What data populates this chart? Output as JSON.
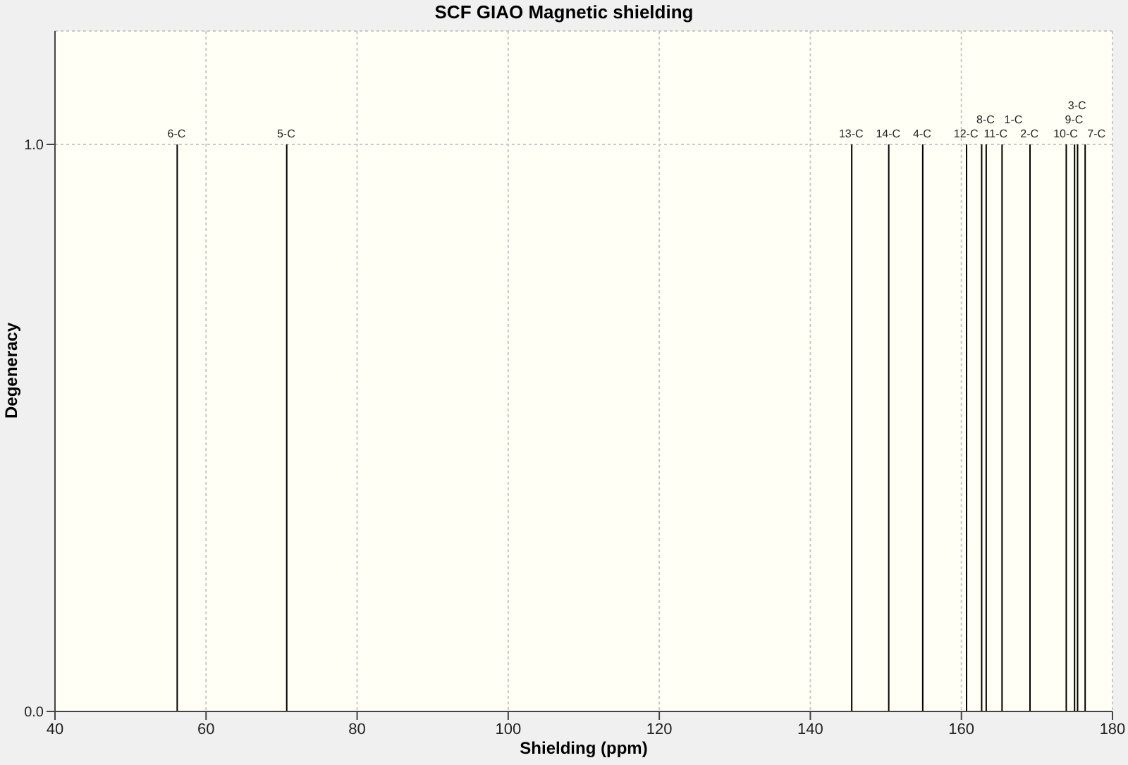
{
  "chart_data": {
    "type": "bar",
    "title": "SCF GIAO Magnetic shielding",
    "xlabel": "Shielding (ppm)",
    "ylabel": "Degeneracy",
    "x": [
      56.1,
      70.6,
      145.4,
      150.3,
      154.8,
      160.6,
      162.6,
      163.2,
      165.3,
      169.0,
      173.8,
      174.9,
      175.3,
      176.3
    ],
    "values": [
      1,
      1,
      1,
      1,
      1,
      1,
      1,
      1,
      1,
      1,
      1,
      1,
      1,
      1
    ],
    "color": "#000000",
    "annotations": [
      {
        "text": "6-C",
        "x": 56.1,
        "y": 1
      },
      {
        "text": "5-C",
        "x": 70.6,
        "y": 1
      },
      {
        "text": "13-C",
        "x": 145.4,
        "y": 1
      },
      {
        "text": "14-C",
        "x": 150.3,
        "y": 1
      },
      {
        "text": "4-C",
        "x": 154.8,
        "y": 1
      },
      {
        "text": "12-C",
        "x": 160.6,
        "y": 1
      },
      {
        "text": "11-C",
        "x": 162.6,
        "y": 1
      },
      {
        "text": "8-C",
        "x": 163.2,
        "y": 1
      },
      {
        "text": "1-C",
        "x": 165.3,
        "y": 1
      },
      {
        "text": "2-C",
        "x": 169.0,
        "y": 1
      },
      {
        "text": "10-C",
        "x": 173.8,
        "y": 1
      },
      {
        "text": "9-C",
        "x": 174.9,
        "y": 1
      },
      {
        "text": "3-C",
        "x": 175.3,
        "y": 1
      },
      {
        "text": "7-C",
        "x": 176.3,
        "y": 1
      }
    ],
    "xlim": [
      40,
      180
    ],
    "xticks": [
      40,
      60,
      80,
      100,
      120,
      140,
      160,
      180
    ],
    "ylim": [
      0,
      1.2
    ],
    "yticks": [
      {
        "value": 0,
        "label": "0.0"
      },
      {
        "value": 1,
        "label": "1.0"
      }
    ],
    "grid": true
  }
}
